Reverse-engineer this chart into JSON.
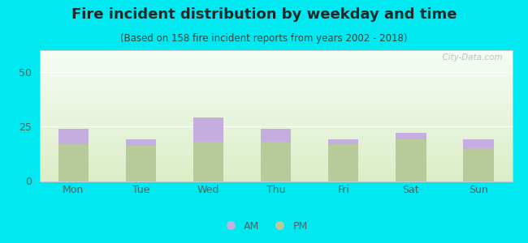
{
  "title": "Fire incident distribution by weekday and time",
  "subtitle": "(Based on 158 fire incident reports from years 2002 - 2018)",
  "categories": [
    "Mon",
    "Tue",
    "Wed",
    "Thu",
    "Fri",
    "Sat",
    "Sun"
  ],
  "pm_values": [
    17,
    16,
    18,
    18,
    17,
    19,
    15
  ],
  "am_values": [
    7,
    3,
    11,
    6,
    2,
    3,
    4
  ],
  "am_color": "#c4aee0",
  "pm_color": "#b8c99a",
  "ylim": [
    0,
    60
  ],
  "yticks": [
    0,
    25,
    50
  ],
  "background_outer": "#00e8f0",
  "watermark": "  City-Data.com",
  "bar_width": 0.45,
  "title_fontsize": 13,
  "subtitle_fontsize": 8.5,
  "tick_fontsize": 9,
  "legend_fontsize": 9,
  "title_color": "#1a2a2a",
  "subtitle_color": "#2a4444",
  "tick_color": "#4a6666"
}
